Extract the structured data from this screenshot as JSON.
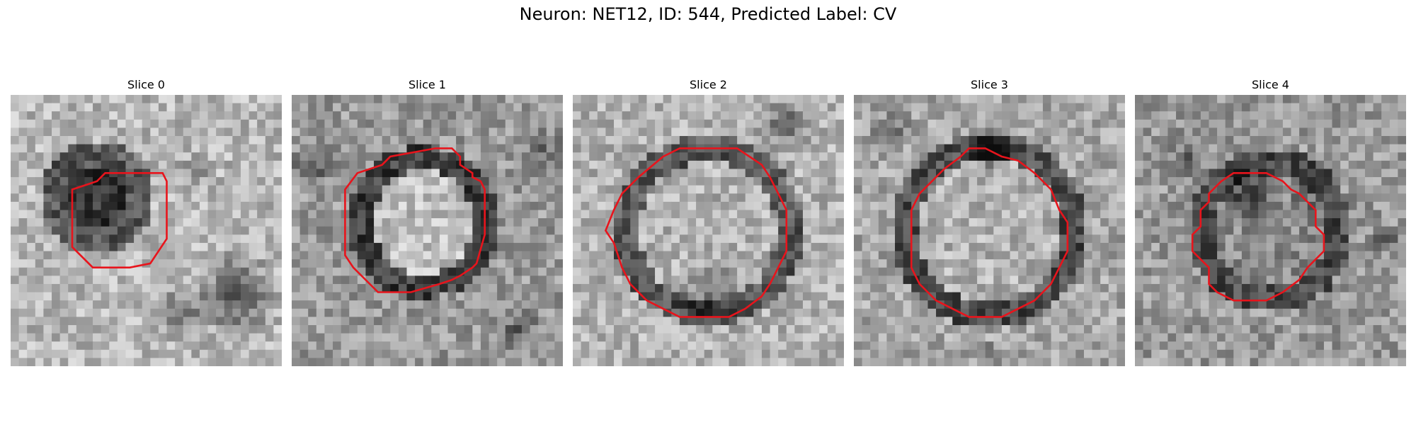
{
  "figure": {
    "title": "Neuron: NET12, ID: 544, Predicted Label: CV"
  },
  "panels": [
    {
      "title": "Slice 0"
    },
    {
      "title": "Slice 1"
    },
    {
      "title": "Slice 2"
    },
    {
      "title": "Slice 3"
    },
    {
      "title": "Slice 4"
    }
  ],
  "contour_color": "#e8141c",
  "colormap": "grayscale"
}
